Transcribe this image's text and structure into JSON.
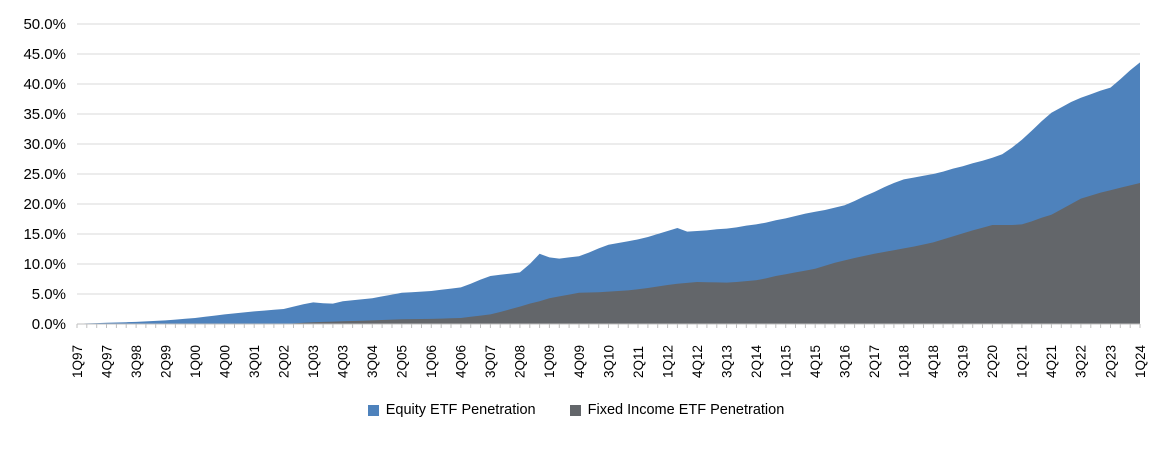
{
  "chart_data": {
    "type": "area",
    "mode": "overlapping",
    "title": "",
    "xlabel": "",
    "ylabel": "",
    "ylim": [
      0,
      50
    ],
    "y_tick_step": 5,
    "y_tick_labels": [
      "0.0%",
      "5.0%",
      "10.0%",
      "15.0%",
      "20.0%",
      "25.0%",
      "30.0%",
      "35.0%",
      "40.0%",
      "45.0%",
      "50.0%"
    ],
    "grid": "horizontal",
    "legend_position": "bottom",
    "x_label_every_n": 3,
    "x_label_rotation": -90,
    "categories": [
      "1Q97",
      "2Q97",
      "3Q97",
      "4Q97",
      "1Q98",
      "2Q98",
      "3Q98",
      "4Q98",
      "1Q99",
      "2Q99",
      "3Q99",
      "4Q99",
      "1Q00",
      "2Q00",
      "3Q00",
      "4Q00",
      "1Q01",
      "2Q01",
      "3Q01",
      "4Q01",
      "1Q02",
      "2Q02",
      "3Q02",
      "4Q02",
      "1Q03",
      "2Q03",
      "3Q03",
      "4Q03",
      "1Q04",
      "2Q04",
      "3Q04",
      "4Q04",
      "1Q05",
      "2Q05",
      "3Q05",
      "4Q05",
      "1Q06",
      "2Q06",
      "3Q06",
      "4Q06",
      "1Q07",
      "2Q07",
      "3Q07",
      "4Q07",
      "1Q08",
      "2Q08",
      "3Q08",
      "4Q08",
      "1Q09",
      "2Q09",
      "3Q09",
      "4Q09",
      "1Q10",
      "2Q10",
      "3Q10",
      "4Q10",
      "1Q11",
      "2Q11",
      "3Q11",
      "4Q11",
      "1Q12",
      "2Q12",
      "3Q12",
      "4Q12",
      "1Q13",
      "2Q13",
      "3Q13",
      "4Q13",
      "1Q14",
      "2Q14",
      "3Q14",
      "4Q14",
      "1Q15",
      "2Q15",
      "3Q15",
      "4Q15",
      "1Q16",
      "2Q16",
      "3Q16",
      "4Q16",
      "1Q17",
      "2Q17",
      "3Q17",
      "4Q17",
      "1Q18",
      "2Q18",
      "3Q18",
      "4Q18",
      "1Q19",
      "2Q19",
      "3Q19",
      "4Q19",
      "1Q20",
      "2Q20",
      "3Q20",
      "4Q20",
      "1Q21",
      "2Q21",
      "3Q21",
      "4Q21",
      "1Q22",
      "2Q22",
      "3Q22",
      "4Q22",
      "1Q23",
      "2Q23",
      "3Q23",
      "4Q23",
      "1Q24"
    ],
    "series": [
      {
        "name": "Equity ETF Penetration",
        "color": "#4E82BC",
        "values": [
          0.05,
          0.1,
          0.15,
          0.2,
          0.25,
          0.3,
          0.35,
          0.43,
          0.52,
          0.6,
          0.73,
          0.87,
          1.0,
          1.2,
          1.4,
          1.6,
          1.77,
          1.93,
          2.1,
          2.23,
          2.37,
          2.5,
          2.9,
          3.3,
          3.6,
          3.45,
          3.4,
          3.8,
          3.97,
          4.13,
          4.3,
          4.6,
          4.9,
          5.2,
          5.3,
          5.4,
          5.5,
          5.7,
          5.9,
          6.1,
          6.7,
          7.4,
          8.0,
          8.2,
          8.4,
          8.6,
          10.0,
          11.7,
          11.1,
          10.9,
          11.1,
          11.3,
          11.9,
          12.6,
          13.2,
          13.5,
          13.8,
          14.1,
          14.5,
          15.0,
          15.5,
          16.0,
          15.4,
          15.5,
          15.6,
          15.8,
          15.9,
          16.1,
          16.4,
          16.6,
          16.9,
          17.3,
          17.6,
          18.0,
          18.4,
          18.7,
          19.0,
          19.4,
          19.8,
          20.5,
          21.3,
          22.0,
          22.8,
          23.5,
          24.1,
          24.4,
          24.7,
          25.0,
          25.4,
          25.9,
          26.3,
          26.8,
          27.2,
          27.7,
          28.3,
          29.4,
          30.7,
          32.2,
          33.8,
          35.2,
          36.1,
          37.0,
          37.7,
          38.3,
          38.9,
          39.4,
          40.8,
          42.3,
          43.6
        ]
      },
      {
        "name": "Fixed Income ETF Penetration",
        "color": "#63666A",
        "values": [
          0,
          0,
          0,
          0,
          0,
          0,
          0,
          0,
          0,
          0,
          0,
          0,
          0,
          0,
          0,
          0,
          0,
          0,
          0,
          0,
          0,
          0,
          0.1,
          0.2,
          0.3,
          0.35,
          0.4,
          0.45,
          0.5,
          0.55,
          0.6,
          0.67,
          0.73,
          0.8,
          0.82,
          0.84,
          0.85,
          0.9,
          0.95,
          1.0,
          1.2,
          1.4,
          1.6,
          2.0,
          2.45,
          2.9,
          3.4,
          3.8,
          4.3,
          4.6,
          4.9,
          5.2,
          5.25,
          5.3,
          5.4,
          5.5,
          5.6,
          5.8,
          6.0,
          6.25,
          6.5,
          6.7,
          6.85,
          7.0,
          6.97,
          6.93,
          6.9,
          7.0,
          7.15,
          7.3,
          7.6,
          8.0,
          8.3,
          8.6,
          8.9,
          9.2,
          9.7,
          10.2,
          10.6,
          11.0,
          11.35,
          11.7,
          12.0,
          12.3,
          12.6,
          12.9,
          13.25,
          13.6,
          14.1,
          14.6,
          15.1,
          15.6,
          16.05,
          16.5,
          16.5,
          16.5,
          16.6,
          17.1,
          17.7,
          18.2,
          19.1,
          20.0,
          20.9,
          21.4,
          21.9,
          22.3,
          22.7,
          23.1,
          23.5
        ]
      }
    ],
    "colors": {
      "gridline": "#D9D9D9",
      "axis_line": "#BFBFBF",
      "tick": "#BFBFBF",
      "axis_text": "#000000",
      "background": "#FFFFFF"
    }
  },
  "legend": {
    "items": [
      {
        "label": "Equity ETF Penetration",
        "color": "#4E82BC"
      },
      {
        "label": "Fixed Income ETF Penetration",
        "color": "#63666A"
      }
    ]
  }
}
